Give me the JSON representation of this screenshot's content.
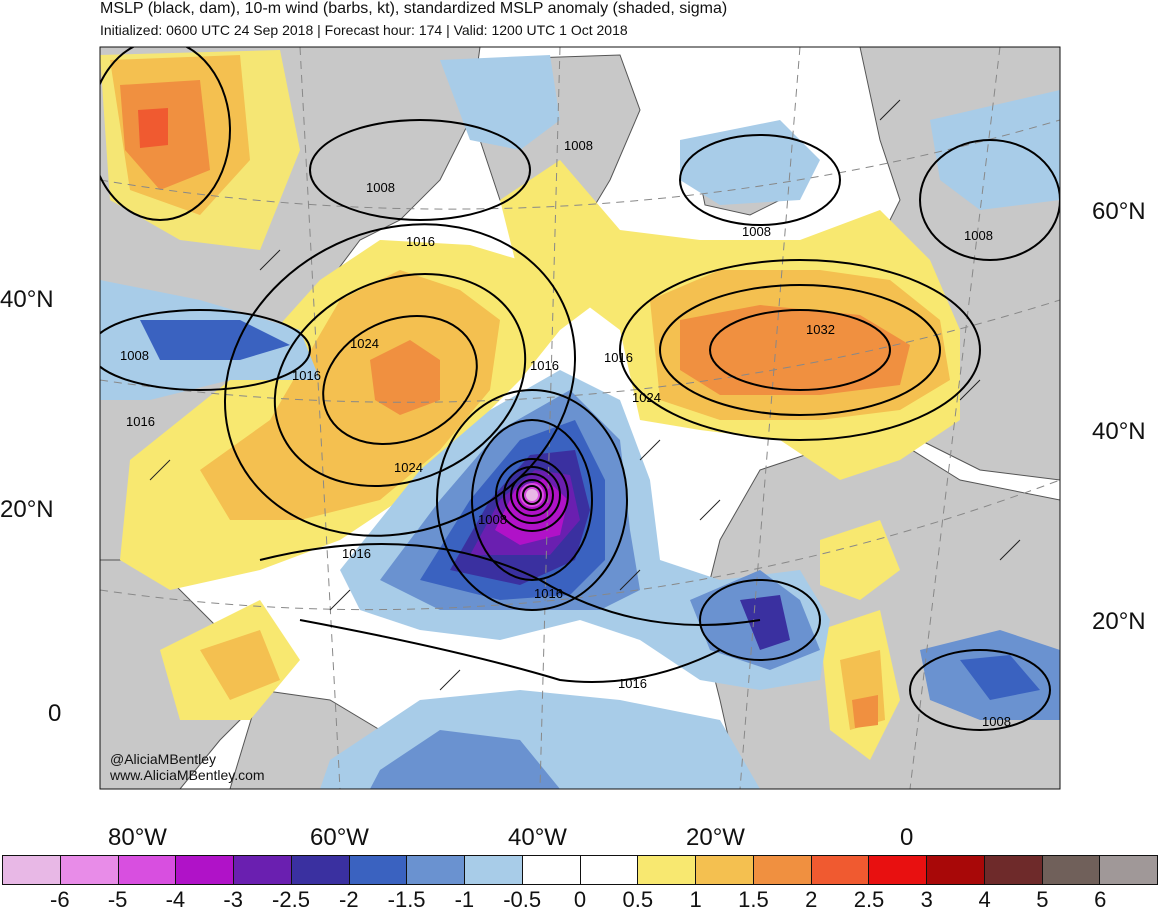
{
  "header": {
    "title": "MSLP (black, dam), 10-m wind (barbs, kt), standardized MSLP anomaly (shaded, sigma)",
    "subtitle": "Initialized: 0600 UTC 24 Sep 2018 | Forecast hour: 174 | Valid: 1200 UTC 1 Oct 2018"
  },
  "axes": {
    "left_lat": [
      "40°N",
      "20°N",
      "0"
    ],
    "right_lat": [
      "60°N",
      "40°N",
      "20°N"
    ],
    "bottom_lon": [
      "80°W",
      "60°W",
      "40°W",
      "20°W",
      "0"
    ]
  },
  "contour_labels": [
    "1008",
    "1008",
    "1016",
    "1008",
    "1008",
    "1008",
    "1024",
    "1016",
    "1016",
    "1016",
    "1016",
    "1032",
    "1024",
    "1024",
    "1008",
    "1016",
    "1016",
    "1016",
    "1008"
  ],
  "credit": {
    "handle": "@AliciaMBentley",
    "site": "www.AliciaMBentley.com"
  },
  "colorbar": {
    "colors": [
      "#e8b8e6",
      "#e88ce8",
      "#d84fe0",
      "#b012c8",
      "#6a1fb0",
      "#3a30a0",
      "#3a62c0",
      "#6a92d0",
      "#a8cce8",
      "#ffffff",
      "#ffffff",
      "#f8e870",
      "#f4c050",
      "#f09040",
      "#f05a30",
      "#e81010",
      "#a80808",
      "#6e2a2a",
      "#70605a",
      "#a09898"
    ],
    "labels": [
      "-6",
      "-5",
      "-4",
      "-3",
      "-2.5",
      "-2",
      "-1.5",
      "-1",
      "-0.5",
      "0",
      "0.5",
      "1",
      "1.5",
      "2",
      "2.5",
      "3",
      "4",
      "5",
      "6"
    ]
  },
  "colors": {
    "land": "#c8c8c8",
    "ocean_neutral": "#ffffff",
    "contour": "#000000",
    "coast": "#555555",
    "grid": "#888888"
  }
}
